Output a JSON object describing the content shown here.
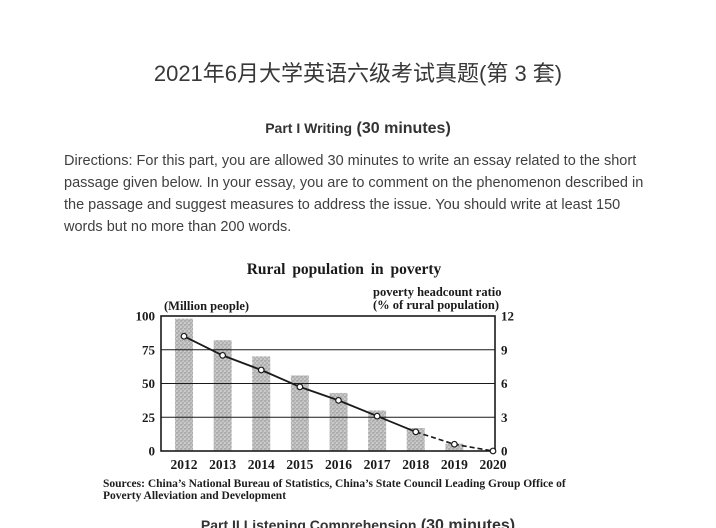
{
  "document": {
    "title": "2021年6月大学英语六级考试真题(第 3 套)",
    "part1": {
      "label": "Part I Writing",
      "duration": "(30 minutes)"
    },
    "directions_lines": [
      "Directions: For this part, you are allowed 30 minutes to write an essay related to the short",
      "passage given below. In your essay, you are to comment on the phenomenon described in",
      "the passage and suggest measures to address the issue. You should write at least 150",
      "words but no more than 200 words."
    ],
    "part2": {
      "label": "Part II Listening Comprehension",
      "duration": "(30 minutes)"
    }
  },
  "chart_data": {
    "type": "bar",
    "subtype": "bar+line combo, dual axis",
    "title": "Rural population in poverty",
    "left_axis_label": "(Million people)",
    "right_axis_label_lines": [
      "poverty headcount ratio",
      "(% of rural population)"
    ],
    "categories": [
      "2012",
      "2013",
      "2014",
      "2015",
      "2016",
      "2017",
      "2018",
      "2019",
      "2020"
    ],
    "series": [
      {
        "name": "Rural population in poverty (million people)",
        "type": "bar",
        "axis": "left",
        "values": [
          98,
          82,
          70,
          56,
          43,
          30,
          17,
          5.5,
          0
        ]
      },
      {
        "name": "Poverty headcount ratio (% of rural population)",
        "type": "line",
        "axis": "right",
        "marker": "open-circle",
        "dashed_from_index": 6,
        "values": [
          10.2,
          8.5,
          7.2,
          5.7,
          4.5,
          3.1,
          1.7,
          0.6,
          0
        ]
      }
    ],
    "left_axis": {
      "min": 0,
      "max": 100,
      "ticks": [
        0,
        25,
        50,
        75,
        100
      ]
    },
    "right_axis": {
      "min": 0,
      "max": 12,
      "ticks": [
        0,
        3,
        6,
        9,
        12
      ]
    },
    "grid": "horizontal gridlines at left-axis ticks",
    "legend_position": "none",
    "ink_color": "#1a1a1a",
    "bar_fill": "stippled gray",
    "source_lines": [
      "Sources: China’s National Bureau of Statistics, China’s State Council Leading Group Office of",
      "Poverty Alleviation and Development"
    ]
  }
}
